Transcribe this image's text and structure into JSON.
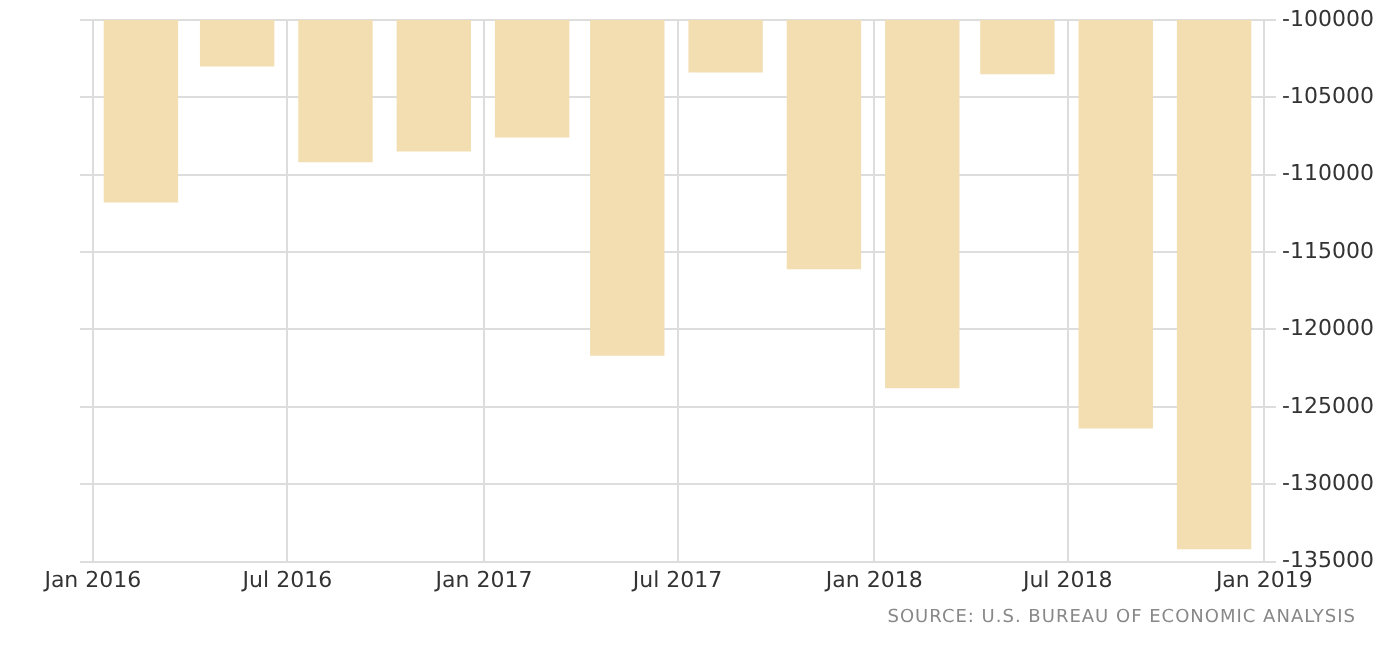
{
  "chart_data": {
    "type": "bar",
    "x": [
      "2016-02-15",
      "2016-05-15",
      "2016-08-15",
      "2016-11-15",
      "2017-02-15",
      "2017-05-15",
      "2017-08-15",
      "2017-11-15",
      "2018-02-15",
      "2018-05-15",
      "2018-08-15",
      "2018-11-15"
    ],
    "values": [
      -111800,
      -103000,
      -109200,
      -108500,
      -107600,
      -121700,
      -103400,
      -116100,
      -123800,
      -103500,
      -126400,
      -134200
    ],
    "color": "#f3deb2",
    "xlim": [
      "2015-12-20",
      "2019-01-12"
    ],
    "xticks": [
      {
        "value": "2016-01-01",
        "label": "Jan 2016"
      },
      {
        "value": "2016-07-01",
        "label": "Jul 2016"
      },
      {
        "value": "2017-01-01",
        "label": "Jan 2017"
      },
      {
        "value": "2017-07-01",
        "label": "Jul 2017"
      },
      {
        "value": "2018-01-01",
        "label": "Jan 2018"
      },
      {
        "value": "2018-07-01",
        "label": "Jul 2018"
      },
      {
        "value": "2019-01-01",
        "label": "Jan 2019"
      }
    ],
    "ylim": [
      -135000,
      -100000
    ],
    "yticks": [
      -135000,
      -130000,
      -125000,
      -120000,
      -115000,
      -110000,
      -105000,
      -100000
    ],
    "grid": true,
    "annotations": [
      "SOURCE: U.S. BUREAU OF ECONOMIC ANALYSIS"
    ]
  }
}
